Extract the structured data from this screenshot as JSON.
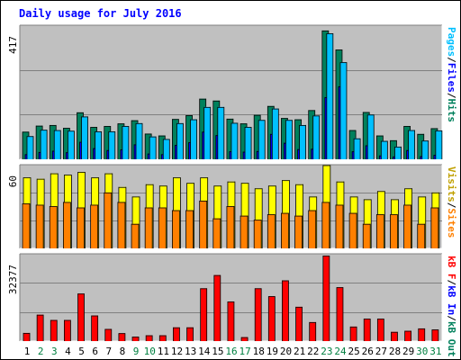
{
  "title": "Daily usage for July 2016",
  "colors": {
    "hits": "#00805c",
    "files": "#0000ff",
    "pages": "#00c0ff",
    "visits": "#ffff00",
    "sites": "#ff8000",
    "kbytes": "#ff0000",
    "panel_bg": "#c0c0c0",
    "weekend_day": "#008040",
    "weekday": "#000000",
    "text_blue": "#0000ff"
  },
  "chart_data": [
    {
      "type": "bar",
      "panel": "hits-files-pages",
      "title": "",
      "y_max_label": "417",
      "legend": [
        "Pages",
        "/",
        "Files",
        "/",
        "Hits"
      ],
      "categories": [
        "1",
        "2",
        "3",
        "4",
        "5",
        "6",
        "7",
        "8",
        "9",
        "10",
        "11",
        "12",
        "13",
        "14",
        "15",
        "16",
        "17",
        "18",
        "19",
        "20",
        "21",
        "22",
        "23",
        "24",
        "25",
        "26",
        "27",
        "28",
        "29",
        "30",
        "31"
      ],
      "series": [
        {
          "name": "Hits",
          "values": [
            87,
            106,
            108,
            99,
            148,
            102,
            105,
            113,
            123,
            81,
            75,
            127,
            139,
            191,
            185,
            128,
            113,
            140,
            168,
            130,
            126,
            155,
            406,
            346,
            92,
            149,
            75,
            60,
            105,
            80,
            98
          ]
        },
        {
          "name": "Files",
          "values": [
            16,
            23,
            27,
            22,
            55,
            35,
            29,
            31,
            47,
            18,
            16,
            45,
            54,
            87,
            76,
            25,
            24,
            26,
            80,
            52,
            32,
            33,
            196,
            230,
            25,
            44,
            12,
            9,
            29,
            10,
            14
          ]
        },
        {
          "name": "Pages",
          "values": [
            73,
            93,
            92,
            90,
            135,
            88,
            88,
            105,
            114,
            72,
            64,
            114,
            126,
            165,
            165,
            115,
            102,
            124,
            160,
            124,
            108,
            138,
            397,
            306,
            66,
            141,
            58,
            40,
            92,
            59,
            91
          ]
        }
      ],
      "ylim": [
        0,
        417
      ]
    },
    {
      "type": "bar",
      "panel": "visits-sites",
      "title": "",
      "y_max_label": "60",
      "legend": [
        "Visits",
        "/",
        "Sites"
      ],
      "series": [
        {
          "name": "Visits",
          "values": [
            52,
            51,
            55,
            54,
            56,
            52,
            55,
            45,
            38,
            47,
            46,
            52,
            48,
            52,
            46,
            49,
            48,
            44,
            46,
            50,
            47,
            38,
            61,
            49,
            38,
            36,
            42,
            36,
            44,
            38,
            41
          ]
        },
        {
          "name": "Sites",
          "values": [
            33,
            32,
            31,
            34,
            30,
            32,
            41,
            34,
            18,
            30,
            30,
            28,
            28,
            35,
            22,
            31,
            24,
            21,
            25,
            26,
            24,
            28,
            34,
            32,
            26,
            18,
            25,
            25,
            32,
            18,
            30
          ]
        }
      ],
      "ylim": [
        0,
        60
      ]
    },
    {
      "type": "bar",
      "panel": "kbytes",
      "title": "",
      "y_max_label": "32377",
      "legend": [
        "kB F",
        "/",
        "kB In",
        "/",
        "kB Out"
      ],
      "series": [
        {
          "name": "kB F",
          "values": [
            3100,
            10000,
            8000,
            8000,
            18000,
            9700,
            4600,
            3000,
            1700,
            2200,
            2200,
            5200,
            5200,
            20000,
            25000,
            15000,
            1500,
            20000,
            17000,
            23000,
            13000,
            7200,
            32377,
            20400,
            5500,
            8500,
            8500,
            3500,
            3900,
            4800,
            4400
          ]
        }
      ],
      "ylim": [
        0,
        32377
      ]
    }
  ],
  "x_axis": {
    "labels": [
      "1",
      "2",
      "3",
      "4",
      "5",
      "6",
      "7",
      "8",
      "9",
      "10",
      "11",
      "12",
      "13",
      "14",
      "15",
      "16",
      "17",
      "18",
      "19",
      "20",
      "21",
      "22",
      "23",
      "24",
      "25",
      "26",
      "27",
      "28",
      "29",
      "30",
      "31"
    ],
    "weekend": [
      false,
      true,
      true,
      false,
      false,
      false,
      false,
      false,
      true,
      true,
      false,
      false,
      false,
      false,
      false,
      true,
      true,
      false,
      false,
      false,
      false,
      false,
      true,
      true,
      false,
      false,
      false,
      false,
      false,
      true,
      true
    ]
  }
}
